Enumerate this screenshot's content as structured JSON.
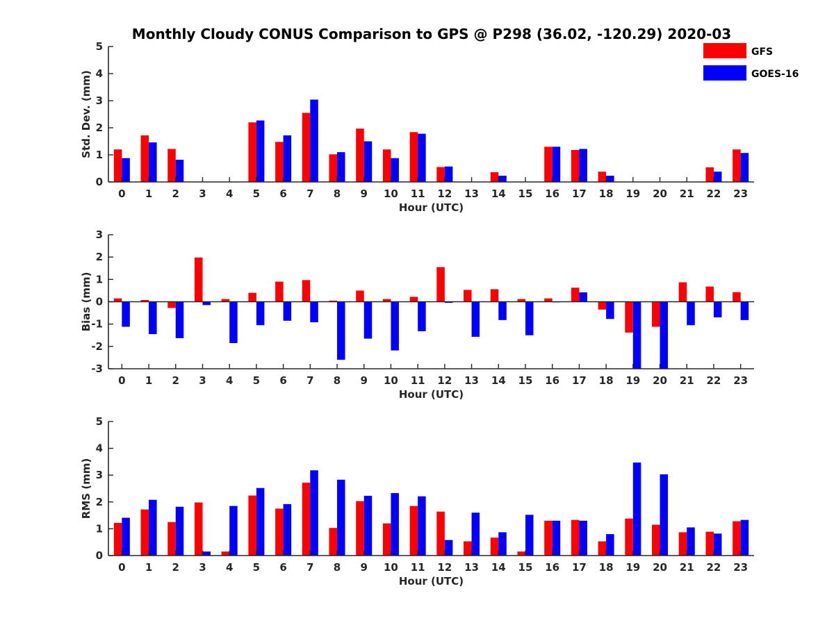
{
  "figure_title": "Monthly Cloudy CONUS Comparison to GPS @ P298 (36.02, -120.29) 2020-03",
  "legend": [
    {
      "label": "GFS",
      "color": "#ff0000"
    },
    {
      "label": "GOES-16",
      "color": "#0000ff"
    }
  ],
  "chart_data": [
    {
      "type": "bar",
      "title": "Monthly Cloudy CONUS Comparison to GPS @ P298 (36.02, -120.29) 2020-03",
      "xlabel": "Hour (UTC)",
      "ylabel": "Std. Dev. (mm)",
      "ylim": [
        0,
        5
      ],
      "yticks": [
        0,
        1,
        2,
        3,
        4,
        5
      ],
      "categories": [
        "0",
        "1",
        "2",
        "3",
        "4",
        "5",
        "6",
        "7",
        "8",
        "9",
        "10",
        "11",
        "12",
        "13",
        "14",
        "15",
        "16",
        "17",
        "18",
        "19",
        "20",
        "21",
        "22",
        "23"
      ],
      "series": [
        {
          "name": "GFS",
          "color": "#ff0000",
          "values": [
            1.2,
            1.72,
            1.22,
            0,
            0,
            2.2,
            1.48,
            2.55,
            1.02,
            1.97,
            1.2,
            1.84,
            0.55,
            0,
            0.36,
            0,
            1.3,
            1.18,
            0.38,
            0,
            0,
            0,
            0.54,
            1.2
          ]
        },
        {
          "name": "GOES-16",
          "color": "#0000ff",
          "values": [
            0.88,
            1.46,
            0.82,
            0,
            0,
            2.27,
            1.72,
            3.04,
            1.1,
            1.5,
            0.88,
            1.78,
            0.57,
            0,
            0.23,
            0,
            1.3,
            1.22,
            0.23,
            0,
            0,
            0,
            0.38,
            1.07
          ]
        }
      ],
      "grid": false,
      "legend_position": "top-right"
    },
    {
      "type": "bar",
      "xlabel": "Hour (UTC)",
      "ylabel": "Bias (mm)",
      "ylim": [
        -3,
        3
      ],
      "yticks": [
        -3,
        -2,
        -1,
        0,
        1,
        2,
        3
      ],
      "categories": [
        "0",
        "1",
        "2",
        "3",
        "4",
        "5",
        "6",
        "7",
        "8",
        "9",
        "10",
        "11",
        "12",
        "13",
        "14",
        "15",
        "16",
        "17",
        "18",
        "19",
        "20",
        "21",
        "22",
        "23"
      ],
      "series": [
        {
          "name": "GFS",
          "color": "#ff0000",
          "values": [
            0.15,
            0.08,
            -0.28,
            1.98,
            0.12,
            0.4,
            0.9,
            0.97,
            0.05,
            0.5,
            0.12,
            0.22,
            1.55,
            0.53,
            0.56,
            0.12,
            0.15,
            0.63,
            -0.35,
            -1.38,
            -1.12,
            0.87,
            0.68,
            0.43
          ]
        },
        {
          "name": "GOES-16",
          "color": "#0000ff",
          "values": [
            -1.12,
            -1.45,
            -1.63,
            -0.15,
            -1.85,
            -1.05,
            -0.85,
            -0.92,
            -2.6,
            -1.65,
            -2.18,
            -1.32,
            -0.05,
            -1.57,
            -0.82,
            -1.5,
            0,
            0.42,
            -0.77,
            -3.0,
            -3.0,
            -1.05,
            -0.7,
            -0.82
          ]
        }
      ],
      "grid": false
    },
    {
      "type": "bar",
      "xlabel": "Hour (UTC)",
      "ylabel": "RMS (mm)",
      "ylim": [
        0,
        5
      ],
      "yticks": [
        0,
        1,
        2,
        3,
        4,
        5
      ],
      "categories": [
        "0",
        "1",
        "2",
        "3",
        "4",
        "5",
        "6",
        "7",
        "8",
        "9",
        "10",
        "11",
        "12",
        "13",
        "14",
        "15",
        "16",
        "17",
        "18",
        "19",
        "20",
        "21",
        "22",
        "23"
      ],
      "series": [
        {
          "name": "GFS",
          "color": "#ff0000",
          "values": [
            1.22,
            1.72,
            1.25,
            1.98,
            0.15,
            2.24,
            1.75,
            2.72,
            1.03,
            2.03,
            1.2,
            1.85,
            1.64,
            0.53,
            0.67,
            0.15,
            1.3,
            1.33,
            0.53,
            1.38,
            1.15,
            0.87,
            0.89,
            1.28
          ]
        },
        {
          "name": "GOES-16",
          "color": "#0000ff",
          "values": [
            1.41,
            2.08,
            1.82,
            0.15,
            1.85,
            2.52,
            1.92,
            3.18,
            2.83,
            2.23,
            2.33,
            2.21,
            0.58,
            1.6,
            0.87,
            1.52,
            1.3,
            1.3,
            0.8,
            3.47,
            3.03,
            1.05,
            0.82,
            1.33
          ]
        }
      ],
      "grid": false
    }
  ]
}
